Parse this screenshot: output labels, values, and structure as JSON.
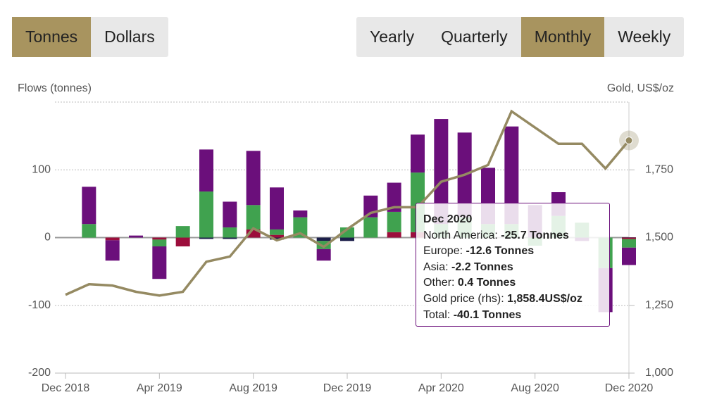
{
  "buttons_left": [
    "Tonnes",
    "Dollars"
  ],
  "buttons_right": [
    "Yearly",
    "Quarterly",
    "Monthly",
    "Weekly"
  ],
  "active_left": 0,
  "active_right": 2,
  "chart_data": {
    "type": "bar",
    "y_label": "Flows (tonnes)",
    "y2_label": "Gold, US$/oz",
    "categories": [
      "Dec 2018",
      null,
      null,
      null,
      "Apr 2019",
      null,
      null,
      null,
      "Aug 2019",
      null,
      null,
      null,
      "Dec 2019",
      null,
      null,
      null,
      "Apr 2020",
      null,
      null,
      null,
      "Aug 2020",
      null,
      null,
      null,
      "Dec 2020"
    ],
    "ylim": [
      -200,
      200
    ],
    "yticks": [
      -200,
      -100,
      0,
      100
    ],
    "y2lim": [
      1000,
      2000
    ],
    "y2ticks": [
      {
        "value": 1000,
        "label": "1,000"
      },
      {
        "value": 1250,
        "label": "1,250"
      },
      {
        "value": 1500,
        "label": "1,500"
      },
      {
        "value": 1750,
        "label": "1,750"
      }
    ],
    "grid": true,
    "series": [
      {
        "name": "Other",
        "color": "#1c1f4a",
        "values": [
          0,
          0,
          0,
          0,
          0,
          0,
          -2,
          -2,
          0,
          -3,
          0,
          -5,
          -5,
          0,
          0,
          0,
          0,
          0,
          0,
          0,
          0,
          0,
          0,
          0,
          0.4
        ]
      },
      {
        "name": "Asia",
        "color": "#9c0e3c",
        "values": [
          0,
          0,
          -4,
          0,
          -3,
          -13,
          0,
          0,
          12,
          4,
          0,
          0,
          0,
          0,
          8,
          8,
          0,
          0,
          0,
          0,
          0,
          0,
          0,
          0,
          -2.2
        ]
      },
      {
        "name": "Europe",
        "color": "#40a24f",
        "values": [
          0,
          20,
          0,
          0,
          -10,
          17,
          68,
          15,
          36,
          8,
          30,
          -12,
          15,
          30,
          30,
          88,
          20,
          30,
          20,
          20,
          -12,
          32,
          22,
          -45,
          -12.6
        ]
      },
      {
        "name": "North America",
        "color": "#6b0f7b",
        "values": [
          0,
          55,
          -30,
          3,
          -48,
          0,
          62,
          38,
          80,
          62,
          10,
          -17,
          0,
          32,
          43,
          56,
          155,
          125,
          83,
          144,
          48,
          35,
          -5,
          -65,
          -25.7
        ]
      },
      {
        "name": "Gold price (rhs)",
        "type": "line",
        "axis": "y2",
        "color": "#958a62",
        "values": [
          1289,
          1328,
          1323,
          1300,
          1286,
          1300,
          1411,
          1430,
          1534,
          1490,
          1516,
          1466,
          1531,
          1591,
          1612,
          1612,
          1706,
          1732,
          1768,
          1966,
          1906,
          1846,
          1846,
          1755,
          1858.4
        ]
      }
    ],
    "tooltip": {
      "title": "Dec 2020",
      "rows": [
        {
          "label": "North America:",
          "value": "-25.7 Tonnes"
        },
        {
          "label": "Europe:",
          "value": "-12.6 Tonnes"
        },
        {
          "label": "Asia:",
          "value": "-2.2 Tonnes"
        },
        {
          "label": "Other:",
          "value": "0.4 Tonnes"
        },
        {
          "label": "Gold price (rhs):",
          "value": "1,858.4US$/oz"
        },
        {
          "label": "Total:",
          "value": "-40.1 Tonnes"
        }
      ]
    }
  }
}
